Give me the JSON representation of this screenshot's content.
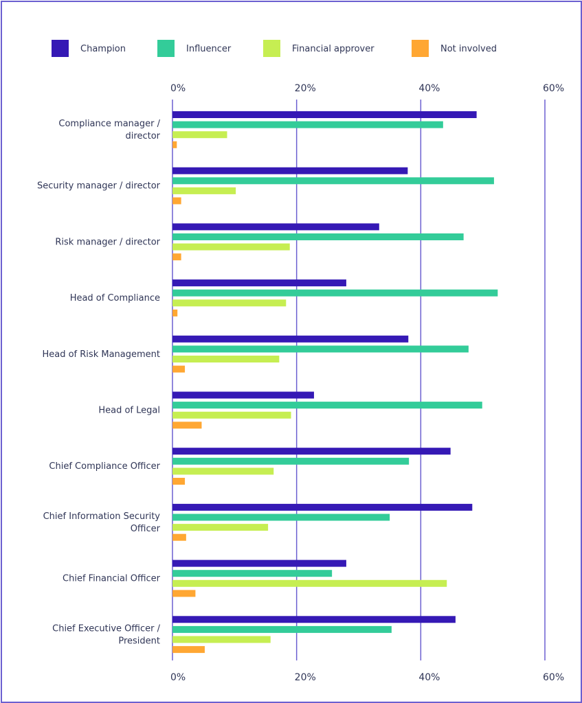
{
  "chart_data": {
    "type": "bar",
    "orientation": "horizontal",
    "categories": [
      "Compliance manager / director",
      "Security manager / director",
      "Risk manager / director",
      "Head of Compliance",
      "Head of Risk Management",
      "Head of Legal",
      "Chief Compliance Officer",
      "Chief Information Security Officer",
      "Chief Financial Officer",
      "Chief Executive Officer / President"
    ],
    "category_lines": [
      [
        "Compliance manager /",
        "director"
      ],
      [
        "Security manager / director"
      ],
      [
        "Risk manager / director"
      ],
      [
        "Head of Compliance"
      ],
      [
        "Head of Risk Management"
      ],
      [
        "Head of Legal"
      ],
      [
        "Chief Compliance Officer"
      ],
      [
        "Chief Information Security",
        "Officer"
      ],
      [
        "Chief Financial Officer"
      ],
      [
        "Chief Executive Officer /",
        "President"
      ]
    ],
    "series": [
      {
        "name": "Champion",
        "color": "#3519b5",
        "values": [
          49.0,
          37.9,
          33.3,
          28.0,
          38.0,
          22.8,
          44.8,
          48.3,
          28.0,
          45.6
        ]
      },
      {
        "name": "Influencer",
        "color": "#33cc99",
        "values": [
          43.6,
          51.8,
          46.9,
          52.4,
          47.7,
          49.9,
          38.1,
          35.0,
          25.7,
          35.3
        ]
      },
      {
        "name": "Financial approver",
        "color": "#c6ee52",
        "values": [
          8.8,
          10.2,
          18.9,
          18.3,
          17.2,
          19.1,
          16.3,
          15.4,
          44.2,
          15.8
        ]
      },
      {
        "name": "Not involved",
        "color": "#ffa733",
        "values": [
          0.7,
          1.4,
          1.4,
          0.8,
          2.0,
          4.7,
          2.0,
          2.2,
          3.7,
          5.2
        ]
      }
    ],
    "xlim": [
      0,
      60
    ],
    "xticks": [
      "0%",
      "20%",
      "40%",
      "60%"
    ],
    "xtick_values": [
      0,
      20,
      40,
      60
    ],
    "grid": true,
    "legend": "top",
    "gridline_color": "#6b5fd0",
    "title": "",
    "xlabel": "",
    "ylabel": ""
  }
}
